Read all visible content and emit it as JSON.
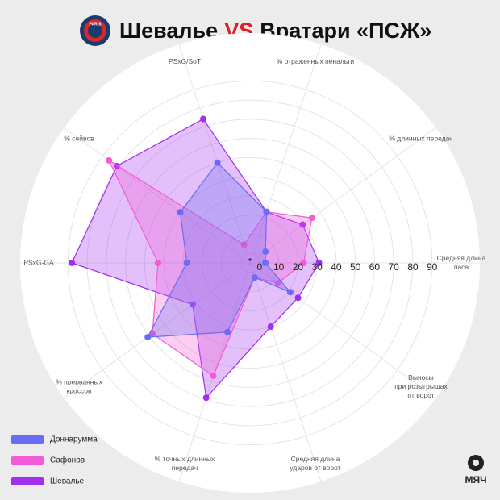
{
  "chart_data": {
    "type": "radar",
    "title": [
      "Шевалье",
      "VS",
      "Вратари «ПСЖ»"
    ],
    "logo_text": "PARIS",
    "brand": "МЯЧ",
    "categories": [
      [
        "Средняя длина",
        "паса"
      ],
      [
        "% длинных передач"
      ],
      [
        "% отраженных пенальти"
      ],
      [
        "PSxG/SoT"
      ],
      [
        "% сейвов"
      ],
      [
        "PSxG-GA"
      ],
      [
        "% прерванных",
        "кроссов"
      ],
      [
        "% точных длинных",
        "передач"
      ],
      [
        "Средняя длина",
        "ударов от ворот"
      ],
      [
        "Выносы",
        "при розыгрышах",
        "от ворот"
      ]
    ],
    "rlim": [
      -5,
      115
    ],
    "rticks": [
      0,
      10,
      20,
      30,
      40,
      50,
      60,
      70,
      80,
      90
    ],
    "series": [
      {
        "name": "Шевалье",
        "color": "#a22ef0",
        "values": [
          31,
          29,
          23,
          74,
          81,
          88,
          32,
          69,
          30,
          26
        ]
      },
      {
        "name": "Сафонов",
        "color": "#f25ad8",
        "values": [
          23,
          35,
          23,
          5,
          86,
          43,
          58,
          57,
          3,
          13
        ]
      },
      {
        "name": "Доннарумма",
        "color": "#6a6cf3",
        "values": [
          3,
          5,
          23,
          50,
          40,
          28,
          61,
          33,
          3,
          21
        ]
      }
    ],
    "legend_order": [
      2,
      1,
      0
    ]
  }
}
